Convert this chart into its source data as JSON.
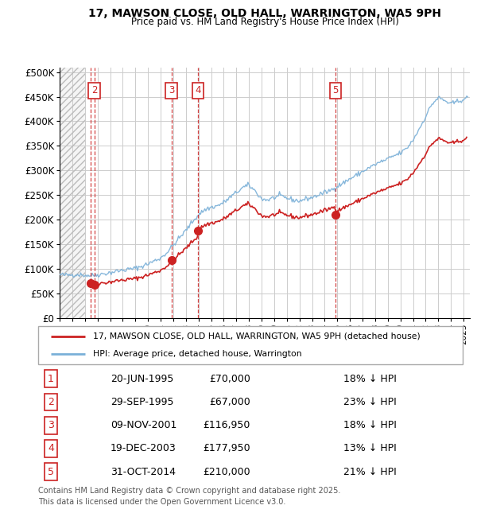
{
  "title_line1": "17, MAWSON CLOSE, OLD HALL, WARRINGTON, WA5 9PH",
  "title_line2": "Price paid vs. HM Land Registry's House Price Index (HPI)",
  "xlim": [
    1993.0,
    2025.5
  ],
  "ylim": [
    0,
    510000
  ],
  "yticks": [
    0,
    50000,
    100000,
    150000,
    200000,
    250000,
    300000,
    350000,
    400000,
    450000,
    500000
  ],
  "ytick_labels": [
    "£0",
    "£50K",
    "£100K",
    "£150K",
    "£200K",
    "£250K",
    "£300K",
    "£350K",
    "£400K",
    "£450K",
    "£500K"
  ],
  "hpi_color": "#7ab0d8",
  "price_color": "#cc2222",
  "grid_color": "#cccccc",
  "legend_label_price": "17, MAWSON CLOSE, OLD HALL, WARRINGTON, WA5 9PH (detached house)",
  "legend_label_hpi": "HPI: Average price, detached house, Warrington",
  "transactions": [
    {
      "num": 1,
      "date": "20-JUN-1995",
      "year": 1995.47,
      "price": 70000,
      "hpi_pct": "18% ↓ HPI"
    },
    {
      "num": 2,
      "date": "29-SEP-1995",
      "year": 1995.75,
      "price": 67000,
      "hpi_pct": "23% ↓ HPI"
    },
    {
      "num": 3,
      "date": "09-NOV-2001",
      "year": 2001.86,
      "price": 116950,
      "hpi_pct": "18% ↓ HPI"
    },
    {
      "num": 4,
      "date": "19-DEC-2003",
      "year": 2003.97,
      "price": 177950,
      "hpi_pct": "13% ↓ HPI"
    },
    {
      "num": 5,
      "date": "31-OCT-2014",
      "year": 2014.84,
      "price": 210000,
      "hpi_pct": "21% ↓ HPI"
    }
  ],
  "table_rows": [
    [
      "1",
      "20-JUN-1995",
      "£70,000",
      "18% ↓ HPI"
    ],
    [
      "2",
      "29-SEP-1995",
      "£67,000",
      "23% ↓ HPI"
    ],
    [
      "3",
      "09-NOV-2001",
      "£116,950",
      "18% ↓ HPI"
    ],
    [
      "4",
      "19-DEC-2003",
      "£177,950",
      "13% ↓ HPI"
    ],
    [
      "5",
      "31-OCT-2014",
      "£210,000",
      "21% ↓ HPI"
    ]
  ],
  "footer": "Contains HM Land Registry data © Crown copyright and database right 2025.\nThis data is licensed under the Open Government Licence v3.0."
}
